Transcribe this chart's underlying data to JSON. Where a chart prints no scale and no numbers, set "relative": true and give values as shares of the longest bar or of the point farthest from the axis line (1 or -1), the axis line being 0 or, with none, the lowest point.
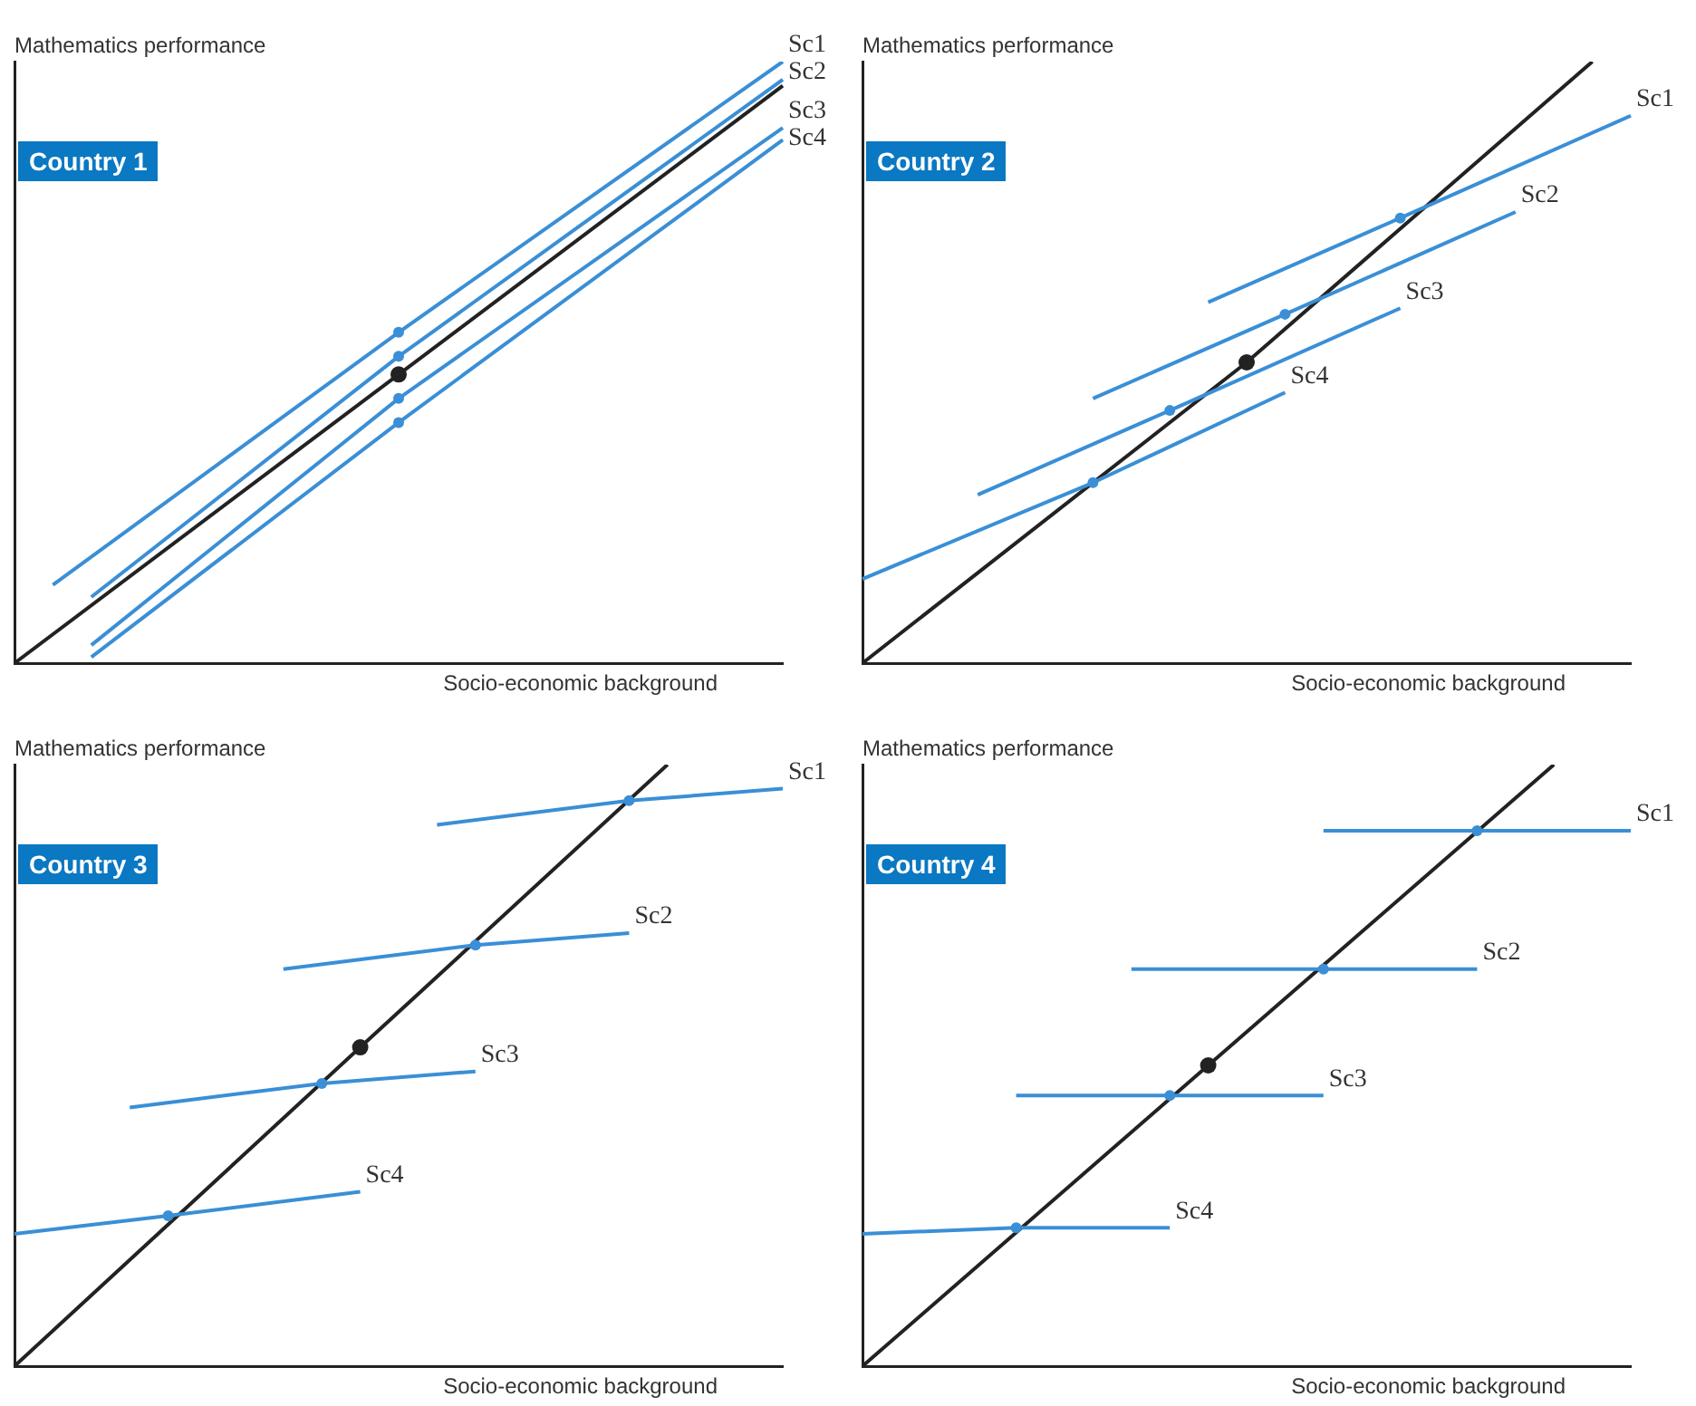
{
  "chart_data": [
    {
      "type": "line",
      "title": "Country 1",
      "xlabel": "Socio-economic background",
      "ylabel": "Mathematics performance",
      "relative": true,
      "legend": false,
      "grid": false,
      "categories": [
        null,
        null,
        null,
        null,
        null,
        null,
        null,
        null,
        null,
        null,
        null,
        null,
        null,
        null,
        null,
        null,
        null,
        null,
        null,
        null,
        null
      ],
      "series": [
        {
          "name": "Sc1",
          "color": "#3a8fd6",
          "values": [
            null,
            0.13,
            null,
            null,
            null,
            null,
            null,
            null,
            null,
            null,
            0.55,
            null,
            null,
            null,
            null,
            null,
            null,
            null,
            null,
            null,
            1.0
          ]
        },
        {
          "name": "Sc2",
          "color": "#3a8fd6",
          "values": [
            null,
            null,
            0.11,
            null,
            null,
            null,
            null,
            null,
            null,
            null,
            0.51,
            null,
            null,
            null,
            null,
            null,
            null,
            null,
            null,
            null,
            0.97
          ]
        },
        {
          "name": "Sc3",
          "color": "#3a8fd6",
          "values": [
            null,
            null,
            0.03,
            null,
            null,
            null,
            null,
            null,
            null,
            null,
            0.44,
            null,
            null,
            null,
            null,
            null,
            null,
            null,
            null,
            null,
            0.89
          ]
        },
        {
          "name": "Sc4",
          "color": "#3a8fd6",
          "values": [
            null,
            null,
            0.01,
            null,
            null,
            null,
            null,
            null,
            null,
            null,
            0.4,
            null,
            null,
            null,
            null,
            null,
            null,
            null,
            null,
            null,
            0.87
          ]
        },
        {
          "color": "#222222",
          "values": [
            0,
            null,
            null,
            null,
            null,
            null,
            null,
            null,
            null,
            null,
            0.48,
            null,
            null,
            null,
            null,
            null,
            null,
            null,
            null,
            null,
            0.96
          ]
        }
      ]
    },
    {
      "type": "line",
      "title": "Country 2",
      "xlabel": "Socio-economic background",
      "ylabel": "Mathematics performance",
      "relative": true,
      "legend": false,
      "grid": false,
      "categories": [
        null,
        null,
        null,
        null,
        null,
        null,
        null,
        null,
        null,
        null,
        null,
        null,
        null,
        null,
        null,
        null,
        null,
        null,
        null,
        null,
        null
      ],
      "series": [
        {
          "name": "Sc1",
          "color": "#3a8fd6",
          "values": [
            null,
            null,
            null,
            null,
            null,
            null,
            null,
            null,
            null,
            0.6,
            null,
            null,
            null,
            null,
            0.74,
            null,
            null,
            null,
            null,
            null,
            0.91
          ]
        },
        {
          "name": "Sc2",
          "color": "#3a8fd6",
          "values": [
            null,
            null,
            null,
            null,
            null,
            null,
            0.44,
            null,
            null,
            null,
            null,
            0.58,
            null,
            null,
            null,
            null,
            null,
            0.75,
            null,
            null,
            null
          ]
        },
        {
          "name": "Sc3",
          "color": "#3a8fd6",
          "values": [
            null,
            null,
            null,
            0.28,
            null,
            null,
            null,
            null,
            0.42,
            null,
            null,
            null,
            null,
            null,
            0.59,
            null,
            null,
            null,
            null,
            null,
            null
          ]
        },
        {
          "name": "Sc4",
          "color": "#3a8fd6",
          "values": [
            0.14,
            null,
            null,
            null,
            null,
            null,
            0.3,
            null,
            null,
            null,
            null,
            0.45,
            null,
            null,
            null,
            null,
            null,
            null,
            null,
            null,
            null
          ]
        },
        {
          "color": "#222222",
          "values": [
            0,
            null,
            null,
            null,
            null,
            null,
            null,
            null,
            null,
            null,
            0.5,
            null,
            null,
            null,
            null,
            null,
            null,
            null,
            null,
            1.0,
            null
          ]
        }
      ]
    },
    {
      "type": "line",
      "title": "Country 3",
      "xlabel": "Socio-economic background",
      "ylabel": "Mathematics performance",
      "relative": true,
      "legend": false,
      "grid": false,
      "categories": [
        null,
        null,
        null,
        null,
        null,
        null,
        null,
        null,
        null,
        null,
        null,
        null,
        null,
        null,
        null,
        null,
        null,
        null,
        null,
        null,
        null
      ],
      "series": [
        {
          "name": "Sc1",
          "color": "#3a8fd6",
          "values": [
            null,
            null,
            null,
            null,
            null,
            null,
            null,
            null,
            null,
            null,
            null,
            0.9,
            null,
            null,
            null,
            null,
            0.94,
            null,
            null,
            null,
            0.96
          ]
        },
        {
          "name": "Sc2",
          "color": "#3a8fd6",
          "values": [
            null,
            null,
            null,
            null,
            null,
            null,
            null,
            0.66,
            null,
            null,
            null,
            null,
            0.7,
            null,
            null,
            null,
            0.72,
            null,
            null,
            null,
            null
          ]
        },
        {
          "name": "Sc3",
          "color": "#3a8fd6",
          "values": [
            null,
            null,
            null,
            0.43,
            null,
            null,
            null,
            null,
            0.47,
            null,
            null,
            null,
            0.49,
            null,
            null,
            null,
            null,
            null,
            null,
            null,
            null
          ]
        },
        {
          "name": "Sc4",
          "color": "#3a8fd6",
          "values": [
            0.22,
            null,
            null,
            null,
            0.25,
            null,
            null,
            null,
            null,
            0.29,
            null,
            null,
            null,
            null,
            null,
            null,
            null,
            null,
            null,
            null,
            null
          ]
        },
        {
          "color": "#222222",
          "values": [
            0,
            null,
            null,
            null,
            null,
            null,
            null,
            null,
            null,
            0.53,
            null,
            null,
            null,
            null,
            null,
            null,
            null,
            1.0,
            null,
            null,
            null
          ]
        }
      ]
    },
    {
      "type": "line",
      "title": "Country 4",
      "xlabel": "Socio-economic background",
      "ylabel": "Mathematics performance",
      "relative": true,
      "legend": false,
      "grid": false,
      "categories": [
        null,
        null,
        null,
        null,
        null,
        null,
        null,
        null,
        null,
        null,
        null,
        null,
        null,
        null,
        null,
        null,
        null,
        null,
        null,
        null,
        null
      ],
      "series": [
        {
          "name": "Sc1",
          "color": "#3a8fd6",
          "values": [
            null,
            null,
            null,
            null,
            null,
            null,
            null,
            null,
            null,
            null,
            null,
            null,
            0.89,
            null,
            null,
            null,
            0.89,
            null,
            null,
            null,
            0.89
          ]
        },
        {
          "name": "Sc2",
          "color": "#3a8fd6",
          "values": [
            null,
            null,
            null,
            null,
            null,
            null,
            null,
            0.66,
            null,
            null,
            null,
            null,
            0.66,
            null,
            null,
            null,
            0.66,
            null,
            null,
            null,
            null
          ]
        },
        {
          "name": "Sc3",
          "color": "#3a8fd6",
          "values": [
            null,
            null,
            null,
            null,
            0.45,
            null,
            null,
            null,
            0.45,
            null,
            null,
            null,
            0.45,
            null,
            null,
            null,
            null,
            null,
            null,
            null,
            null
          ]
        },
        {
          "name": "Sc4",
          "color": "#3a8fd6",
          "values": [
            0.22,
            null,
            null,
            null,
            0.23,
            null,
            null,
            null,
            0.23,
            null,
            null,
            null,
            null,
            null,
            null,
            null,
            null,
            null,
            null,
            null,
            null
          ]
        },
        {
          "color": "#222222",
          "values": [
            0,
            null,
            null,
            null,
            null,
            null,
            null,
            null,
            null,
            0.5,
            null,
            null,
            null,
            null,
            null,
            null,
            null,
            null,
            1.0,
            null,
            null
          ]
        }
      ]
    }
  ]
}
